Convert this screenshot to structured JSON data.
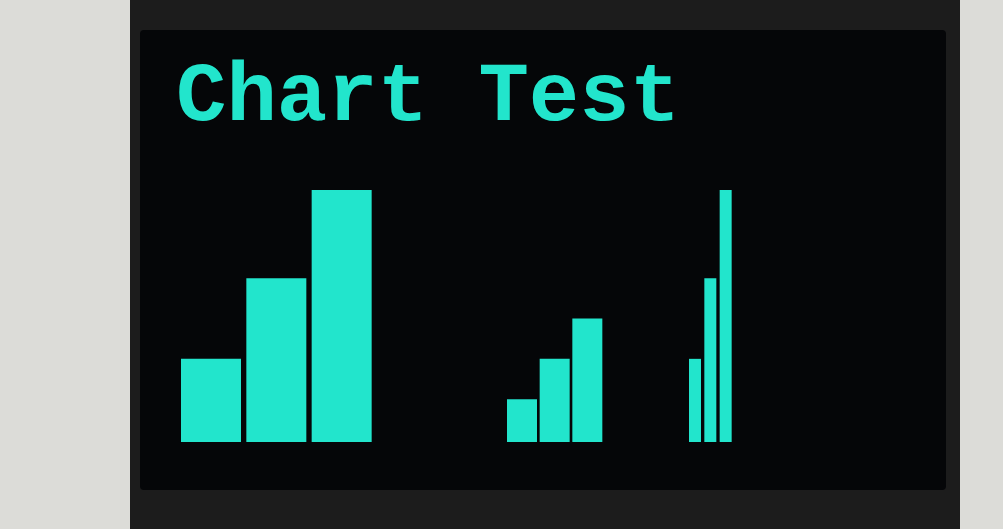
{
  "title": "Chart Test",
  "chart_data": [
    {
      "type": "bar",
      "categories": [
        null,
        null,
        null
      ],
      "values": [
        33,
        65,
        100
      ],
      "color": "#22e5cc",
      "ylim": [
        0,
        100
      ],
      "tick_labels": false
    },
    {
      "type": "bar",
      "categories": [
        null,
        null,
        null
      ],
      "values": [
        17,
        33,
        49
      ],
      "color": "#22e5cc",
      "ylim": [
        0,
        100
      ],
      "tick_labels": false
    },
    {
      "type": "bar",
      "categories": [
        null,
        null,
        null
      ],
      "values": [
        33,
        65,
        100
      ],
      "color": "#22e5cc",
      "ylim": [
        0,
        100
      ],
      "tick_labels": false
    }
  ]
}
